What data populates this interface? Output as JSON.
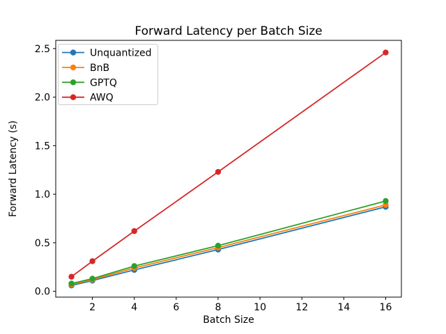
{
  "chart_data": {
    "type": "line",
    "title": "Forward Latency per Batch Size",
    "xlabel": "Batch Size",
    "ylabel": "Forward Latency (s)",
    "x": [
      1,
      2,
      4,
      8,
      16
    ],
    "series": [
      {
        "name": "Unquantized",
        "color": "#1f77b4",
        "values": [
          0.06,
          0.11,
          0.22,
          0.43,
          0.87
        ]
      },
      {
        "name": "BnB",
        "color": "#ff7f0e",
        "values": [
          0.07,
          0.12,
          0.24,
          0.45,
          0.89
        ]
      },
      {
        "name": "GPTQ",
        "color": "#2ca02c",
        "values": [
          0.08,
          0.13,
          0.26,
          0.47,
          0.93
        ]
      },
      {
        "name": "AWQ",
        "color": "#d62728",
        "values": [
          0.15,
          0.31,
          0.62,
          1.23,
          2.46
        ]
      }
    ],
    "xticks": [
      2,
      4,
      6,
      8,
      10,
      12,
      14,
      16
    ],
    "xtick_labels": [
      "2",
      "4",
      "6",
      "8",
      "10",
      "12",
      "14",
      "16"
    ],
    "yticks": [
      0.0,
      0.5,
      1.0,
      1.5,
      2.0,
      2.5
    ],
    "ytick_labels": [
      "0.0",
      "0.5",
      "1.0",
      "1.5",
      "2.0",
      "2.5"
    ],
    "xlim": [
      0.25,
      16.75
    ],
    "ylim": [
      -0.06,
      2.585
    ],
    "legend_position": "upper left",
    "grid": false,
    "marker": "o",
    "background_color": "#ffffff",
    "spine_color": "#000000",
    "legend_border_color": "#cccccc"
  }
}
